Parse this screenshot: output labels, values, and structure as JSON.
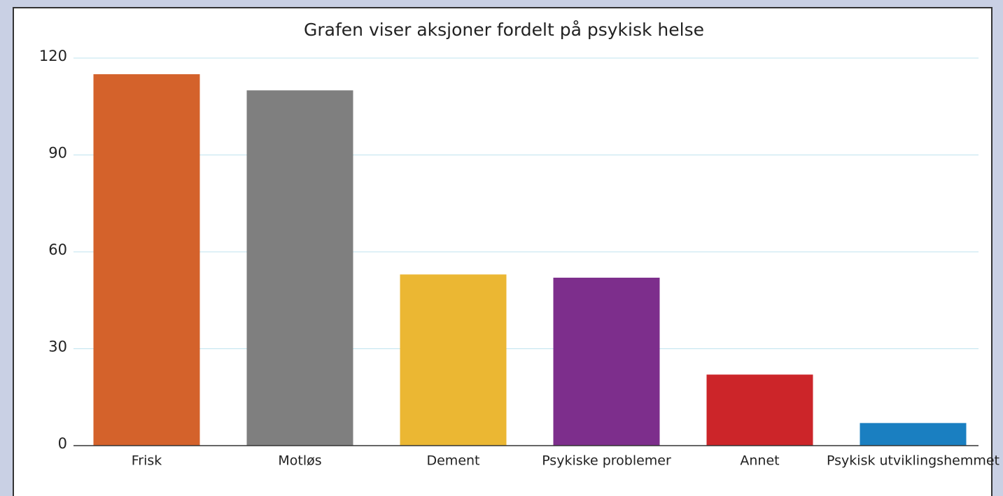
{
  "chart_data": {
    "type": "bar",
    "title": "Grafen viser aksjoner fordelt på psykisk helse",
    "categories": [
      "Frisk",
      "Motløs",
      "Dement",
      "Psykiske problemer",
      "Annet",
      "Psykisk utviklingshemmet"
    ],
    "values": [
      115,
      110,
      53,
      52,
      22,
      7
    ],
    "colors": [
      "#d4622b",
      "#7f7f7f",
      "#ebb733",
      "#7d2e8c",
      "#cc2529",
      "#1a7fc1"
    ],
    "ylim": [
      0,
      120
    ],
    "yticks": [
      0,
      30,
      60,
      90,
      120
    ],
    "grid": true
  }
}
